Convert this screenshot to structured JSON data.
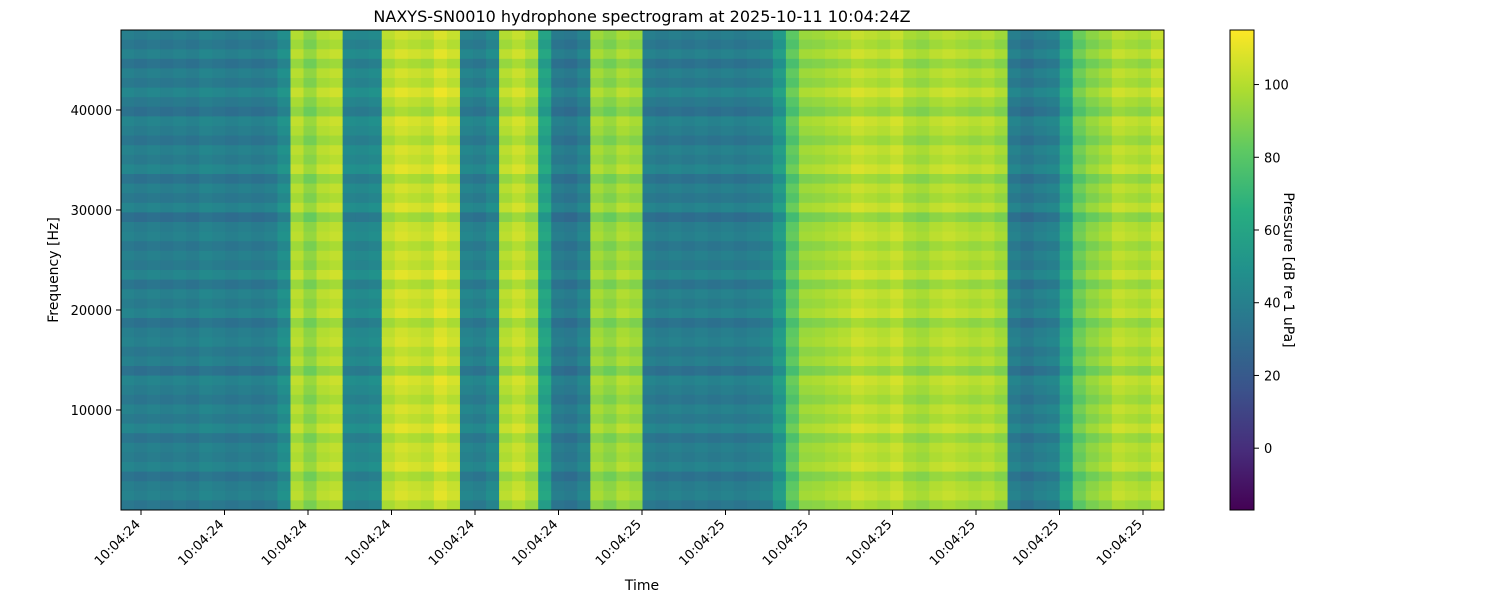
{
  "chart_data": {
    "type": "heatmap",
    "title": "NAXYS-SN0010 hydrophone spectrogram at 2025-10-11 10:04:24Z",
    "xlabel": "Time",
    "ylabel": "Frequency [Hz]",
    "colorbar_label": "Pressure [dB re 1 uPa]",
    "colormap": "viridis",
    "ylim": [
      0,
      48000
    ],
    "y_ticks": [
      10000,
      20000,
      30000,
      40000
    ],
    "x_tick_labels": [
      "10:04:24",
      "10:04:24",
      "10:04:24",
      "10:04:24",
      "10:04:24",
      "10:04:24",
      "10:04:25",
      "10:04:25",
      "10:04:25",
      "10:04:25",
      "10:04:25",
      "10:04:25",
      "10:04:25"
    ],
    "clim": [
      -17,
      115
    ],
    "colorbar_ticks": [
      0,
      20,
      40,
      60,
      80,
      100
    ],
    "column_levels_db": [
      40,
      38,
      40,
      38,
      40,
      38,
      42,
      40,
      38,
      40,
      38,
      40,
      48,
      100,
      92,
      100,
      102,
      45,
      44,
      46,
      102,
      106,
      104,
      102,
      108,
      104,
      42,
      40,
      46,
      100,
      104,
      98,
      60,
      38,
      36,
      42,
      96,
      92,
      98,
      95,
      40,
      38,
      40,
      38,
      40,
      38,
      40,
      38,
      40,
      42,
      55,
      82,
      95,
      96,
      98,
      100,
      104,
      102,
      100,
      104,
      98,
      96,
      100,
      102,
      100,
      98,
      100,
      96,
      40,
      36,
      40,
      42,
      60,
      85,
      92,
      96,
      102,
      100,
      98,
      104
    ],
    "row_profile_db": [
      0,
      -4,
      2,
      -6,
      1,
      -3,
      4,
      -2,
      -7,
      3,
      0,
      -5,
      2,
      -1,
      4,
      -6,
      1,
      -3,
      3,
      -8,
      0,
      2,
      -4,
      1,
      -2,
      4,
      -5,
      2,
      -1,
      3,
      -6,
      0,
      2,
      -3,
      1,
      -7,
      3,
      0,
      -4,
      2,
      -2,
      4,
      -5,
      1,
      -1,
      3,
      -6,
      0,
      2,
      -4
    ]
  }
}
